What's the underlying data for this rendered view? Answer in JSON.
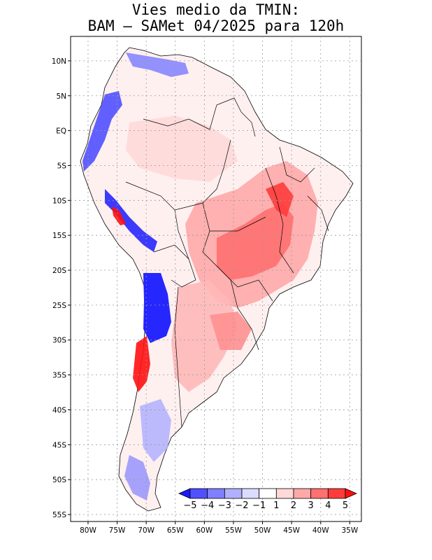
{
  "title": {
    "line1": "Vies medio da TMIN:",
    "line2": "BAM – SAMet 04/2025  para 120h"
  },
  "map": {
    "lon_range": [
      -83,
      -33
    ],
    "lat_range": [
      -56,
      13.5
    ],
    "lat_ticks": [
      "10N",
      "5N",
      "EQ",
      "5S",
      "10S",
      "15S",
      "20S",
      "25S",
      "30S",
      "35S",
      "40S",
      "45S",
      "50S",
      "55S"
    ],
    "lat_values": [
      10,
      5,
      0,
      -5,
      -10,
      -15,
      -20,
      -25,
      -30,
      -35,
      -40,
      -45,
      -50,
      -55
    ],
    "lon_ticks": [
      "80W",
      "75W",
      "70W",
      "65W",
      "60W",
      "55W",
      "50W",
      "45W",
      "40W",
      "35W"
    ],
    "lon_values": [
      -80,
      -75,
      -70,
      -65,
      -60,
      -55,
      -50,
      -45,
      -40,
      -35
    ]
  },
  "colorbar": {
    "labels": [
      "−5",
      "−4",
      "−3",
      "−2",
      "−1",
      "1",
      "2",
      "3",
      "4",
      "5"
    ],
    "colors": [
      "#1a1aff",
      "#5050ff",
      "#8080ff",
      "#b0b0ff",
      "#dcdcff",
      "#ffffff",
      "#ffd8d8",
      "#ffa8a8",
      "#ff7070",
      "#ff3c3c",
      "#ff1010"
    ]
  }
}
